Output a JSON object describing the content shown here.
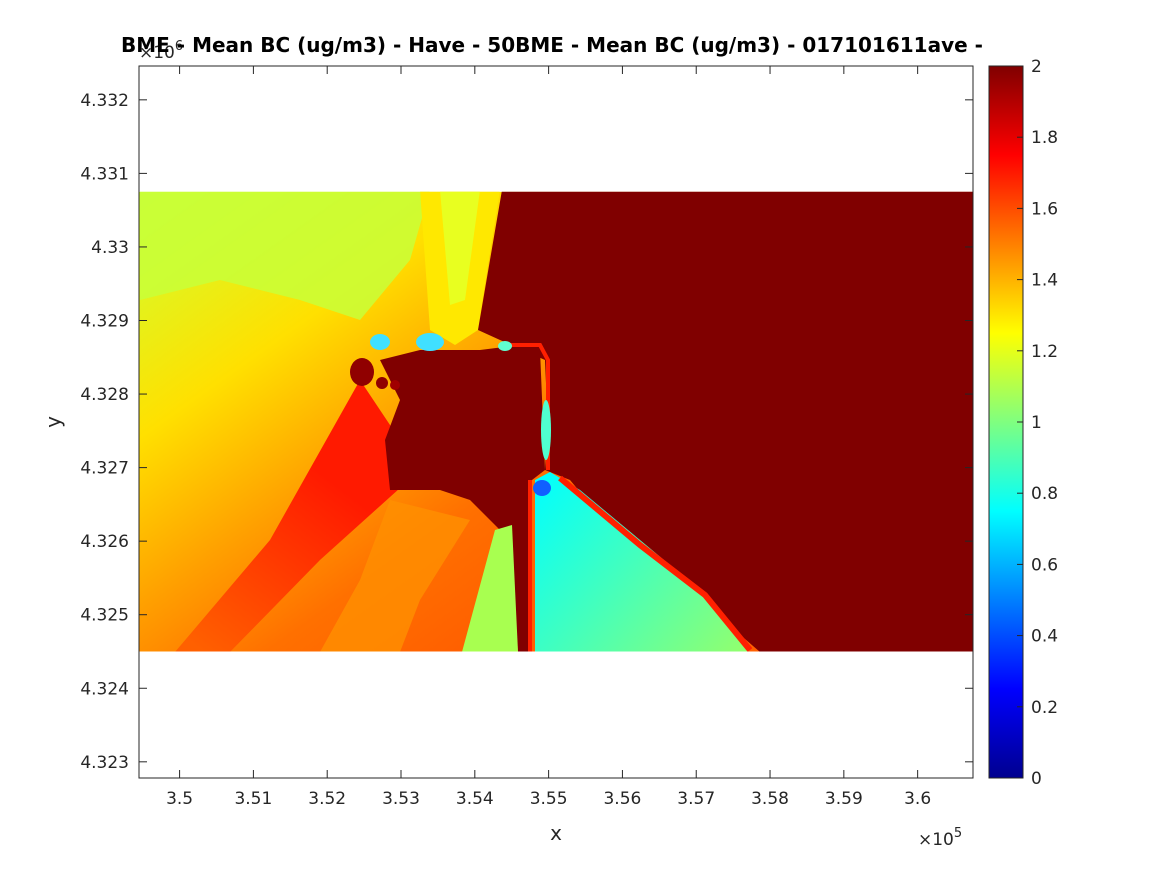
{
  "chart_data": {
    "type": "heatmap",
    "title": "BME - Mean BC (ug/m3) -  Have - 50BME - Mean BC (ug/m3) -  017101611ave -",
    "xlabel": "x",
    "ylabel": "y",
    "x_exponent_label": "×10",
    "x_exponent": "5",
    "y_exponent_label": "×10",
    "y_exponent": "6",
    "xlim": [
      349450,
      360750
    ],
    "ylim": [
      4322780,
      4332460
    ],
    "x_ticks": [
      350000,
      351000,
      352000,
      353000,
      354000,
      355000,
      356000,
      357000,
      358000,
      359000,
      360000
    ],
    "x_tick_labels": [
      "3.5",
      "3.51",
      "3.52",
      "3.53",
      "3.54",
      "3.55",
      "3.56",
      "3.57",
      "3.58",
      "3.59",
      "3.6"
    ],
    "y_ticks": [
      4323000,
      4324000,
      4325000,
      4326000,
      4327000,
      4328000,
      4329000,
      4330000,
      4331000,
      4332000
    ],
    "y_tick_labels": [
      "4.323",
      "4.324",
      "4.325",
      "4.326",
      "4.327",
      "4.328",
      "4.329",
      "4.33",
      "4.331",
      "4.332"
    ],
    "data_extent": {
      "x": [
        349450,
        360750
      ],
      "y": [
        4324500,
        4330750
      ]
    },
    "colorbar": {
      "colormap": "jet",
      "clim": [
        0,
        2
      ],
      "ticks": [
        0,
        0.2,
        0.4,
        0.6,
        0.8,
        1,
        1.2,
        1.4,
        1.6,
        1.8,
        2
      ],
      "tick_labels": [
        "0",
        "0.2",
        "0.4",
        "0.6",
        "0.8",
        "1",
        "1.2",
        "1.4",
        "1.6",
        "1.8",
        "2"
      ]
    },
    "regions": [
      {
        "desc": "background gradient west",
        "value": "gradient"
      },
      {
        "desc": "saturated east region",
        "value": 2.0
      },
      {
        "desc": "cyan wedge south of x=3.55e5",
        "value": 0.88
      },
      {
        "desc": "green fan south-east",
        "value": 1.0
      },
      {
        "desc": "narrow northern plume",
        "value": 1.25
      }
    ]
  }
}
